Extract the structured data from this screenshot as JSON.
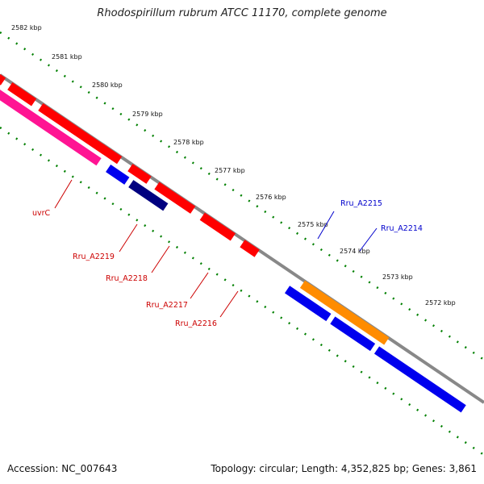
{
  "title": "Rhodospirillum rubrum ATCC 11170, complete genome",
  "footer": {
    "accession": "Accession: NC_007643",
    "summary": "Topology: circular; Length: 4,352,825 bp; Genes: 3,861"
  },
  "colors": {
    "forward_gene": "#ff0000",
    "reverse_gene": "#0000ee",
    "pink_gene": "#ff1493",
    "orange_gene": "#ff8c00",
    "purple_gene": "#6a5acd",
    "navy_gene": "#000080",
    "backbone": "#808080",
    "ticks": "#008000",
    "red_label": "#cc0000",
    "blue_label": "#0000cc"
  },
  "ruler": {
    "ticks": [
      "2582 kbp",
      "2581 kbp",
      "2580 kbp",
      "2579 kbp",
      "2578 kbp",
      "2577 kbp",
      "2576 kbp",
      "2575 kbp",
      "2574 kbp",
      "2573 kbp",
      "2572 kbp"
    ]
  },
  "gene_labels": [
    {
      "name": "uvrC",
      "color": "red"
    },
    {
      "name": "Rru_A2219",
      "color": "red"
    },
    {
      "name": "Rru_A2218",
      "color": "red"
    },
    {
      "name": "Rru_A2217",
      "color": "red"
    },
    {
      "name": "Rru_A2216",
      "color": "red"
    },
    {
      "name": "Rru_A2215",
      "color": "blue"
    },
    {
      "name": "Rru_A2214",
      "color": "blue"
    }
  ]
}
